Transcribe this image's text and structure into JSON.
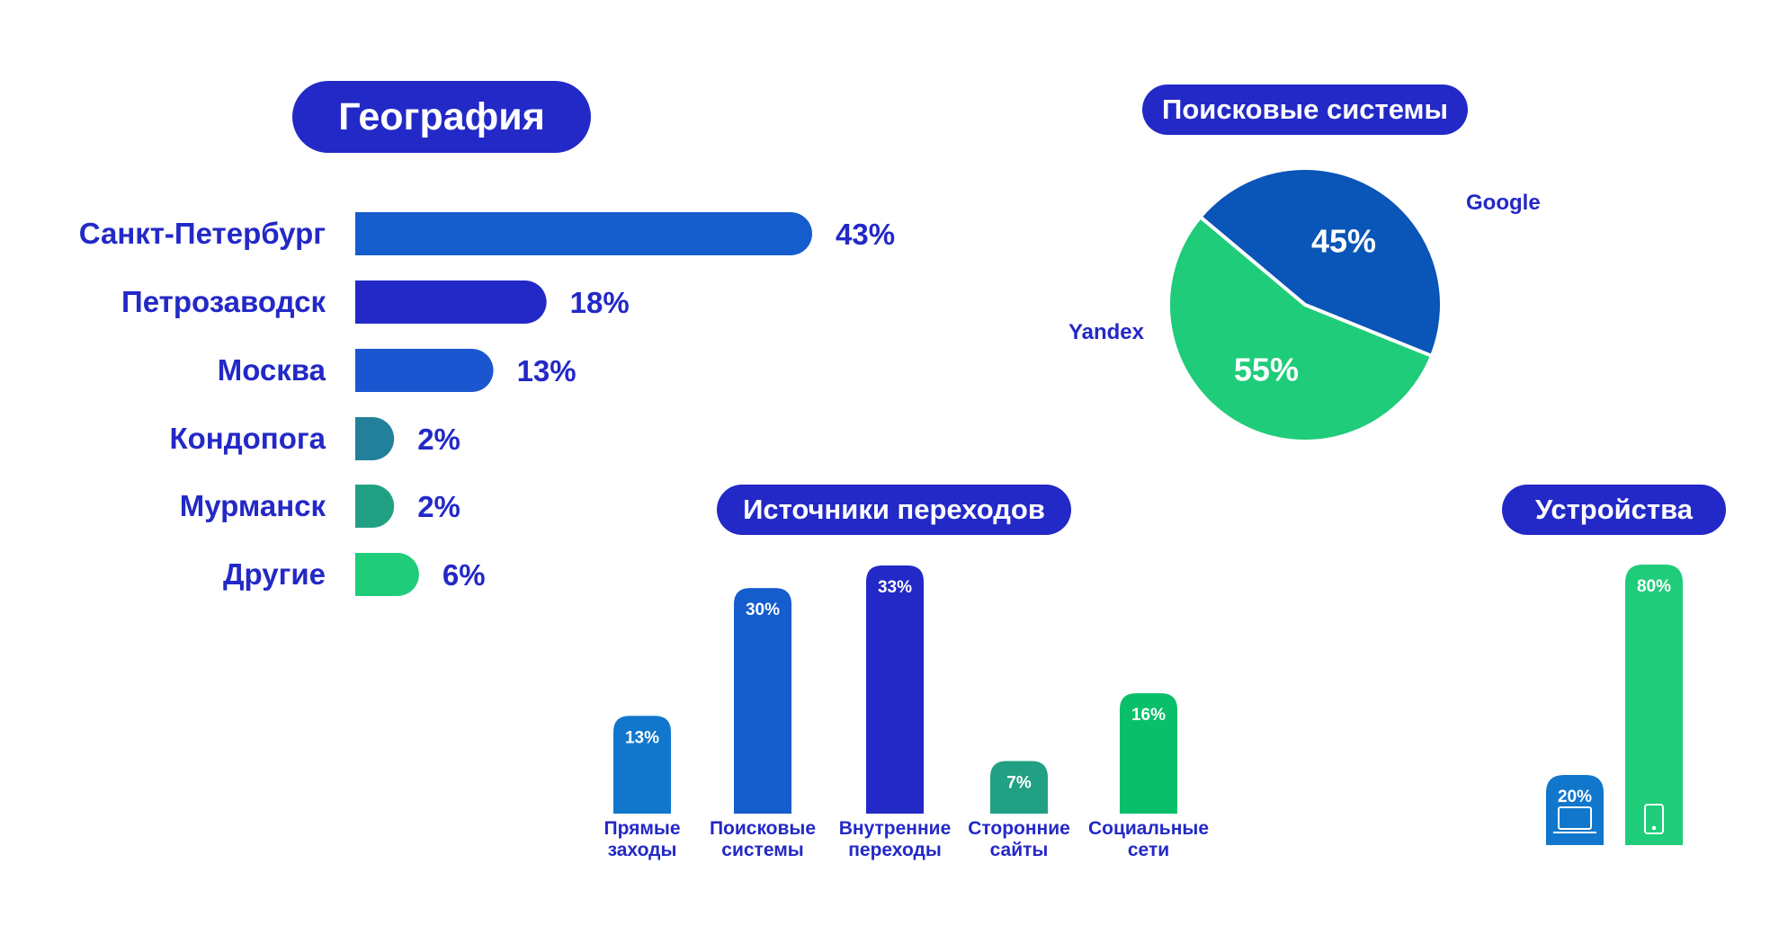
{
  "colors": {
    "title_pill": "#2329c6",
    "label_text": "#2329c6",
    "blue": "#155ccd",
    "indigo": "#2329c6",
    "azure": "#1177cc",
    "teal_dark": "#23809a",
    "teal": "#22a084",
    "green": "#1fcc7a",
    "green_bright": "#0abf6a",
    "pie_google": "#0a55b8",
    "pie_yandex": "#1fcc7a"
  },
  "titles": {
    "geography": "География",
    "search_engines": "Поисковые системы",
    "sources": "Источники переходов",
    "devices": "Устройства"
  },
  "chart_data": [
    {
      "id": "geography",
      "type": "bar",
      "orientation": "horizontal",
      "title": "География",
      "categories": [
        "Санкт-Петербург",
        "Петрозаводск",
        "Москва",
        "Кондопога",
        "Мурманск",
        "Другие"
      ],
      "values": [
        43,
        18,
        13,
        2,
        2,
        6
      ],
      "labels": [
        "43%",
        "18%",
        "13%",
        "2%",
        "2%",
        "6%"
      ],
      "colors": [
        "#155ccd",
        "#2329c6",
        "#1a56cf",
        "#23809a",
        "#22a084",
        "#1fcc7a"
      ],
      "unit": "%"
    },
    {
      "id": "search_engines",
      "type": "pie",
      "title": "Поисковые системы",
      "categories": [
        "Google",
        "Yandex"
      ],
      "values": [
        45,
        55
      ],
      "labels": [
        "45%",
        "55%"
      ],
      "colors": [
        "#0a55b8",
        "#1fcc7a"
      ],
      "unit": "%"
    },
    {
      "id": "sources",
      "type": "bar",
      "orientation": "vertical",
      "title": "Источники переходов",
      "categories": [
        [
          "Прямые",
          "заходы"
        ],
        [
          "Поисковые",
          "системы"
        ],
        [
          "Внутренние",
          "переходы"
        ],
        [
          "Сторонние",
          "сайты"
        ],
        [
          "Социальные",
          "сети"
        ]
      ],
      "values": [
        13,
        30,
        33,
        7,
        16
      ],
      "labels": [
        "13%",
        "30%",
        "33%",
        "7%",
        "16%"
      ],
      "colors": [
        "#1177cc",
        "#155ccd",
        "#2329c6",
        "#22a084",
        "#0abf6a"
      ],
      "unit": "%"
    },
    {
      "id": "devices",
      "type": "bar",
      "orientation": "vertical",
      "title": "Устройства",
      "categories": [
        "laptop",
        "smartphone"
      ],
      "icons": [
        "laptop-icon",
        "smartphone-icon"
      ],
      "values": [
        20,
        80
      ],
      "labels": [
        "20%",
        "80%"
      ],
      "colors": [
        "#1177cc",
        "#1fcc7a"
      ],
      "unit": "%"
    }
  ]
}
